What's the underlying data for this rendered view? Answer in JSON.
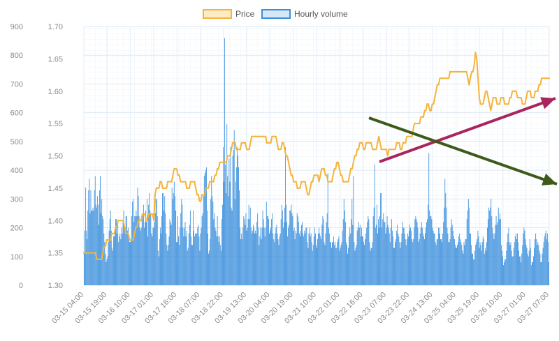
{
  "chart_data": {
    "type": "bar+line",
    "title": "",
    "legend": {
      "position": "top-center",
      "items": [
        {
          "label": "Price",
          "color": "#f4b43a"
        },
        {
          "label": "Hourly volume",
          "color": "#3b8fdc"
        }
      ]
    },
    "y_left": {
      "label": "",
      "ticks": [
        0,
        100,
        200,
        300,
        400,
        500,
        600,
        700,
        800,
        900
      ],
      "range": [
        0,
        900
      ]
    },
    "y_right": {
      "label": "",
      "ticks": [
        "1.30",
        "1.35",
        "1.40",
        "1.45",
        "1.50",
        "1.55",
        "1.60",
        "1.65",
        "1.70"
      ],
      "range": [
        1.3,
        1.7
      ]
    },
    "x_ticks": [
      "03-15 04:00",
      "03-15 19:00",
      "03-16 10:00",
      "03-17 01:00",
      "03-17 16:00",
      "03-18 07:00",
      "03-18 22:00",
      "03-19 13:00",
      "03-20 04:00",
      "03-20 19:00",
      "03-21 10:00",
      "03-22 01:00",
      "03-22 16:00",
      "03-23 07:00",
      "03-23 22:00",
      "03-24 13:00",
      "03-25 04:00",
      "03-25 19:00",
      "03-26 10:00",
      "03-27 01:00",
      "03-27 07:00"
    ],
    "grid": true,
    "series": [
      {
        "name": "Hourly volume",
        "kind": "bar",
        "axis": "left",
        "color": "#3b8fdc",
        "values": [
          190,
          110,
          340,
          190,
          160,
          260,
          330,
          370,
          250,
          330,
          260,
          260,
          270,
          260,
          330,
          380,
          280,
          270,
          310,
          280,
          210,
          330,
          380,
          250,
          300,
          240,
          230,
          180,
          150,
          110,
          80,
          90,
          100,
          150,
          190,
          230,
          260,
          190,
          130,
          120,
          170,
          170,
          190,
          230,
          230,
          180,
          210,
          150,
          170,
          180,
          160,
          200,
          180,
          220,
          260,
          200,
          180,
          240,
          240,
          190,
          200,
          160,
          150,
          150,
          160,
          240,
          290,
          300,
          220,
          240,
          240,
          260,
          240,
          340,
          310,
          240,
          200,
          190,
          200,
          230,
          240,
          280,
          200,
          220,
          260,
          220,
          300,
          170,
          280,
          320,
          260,
          250,
          180,
          170,
          200,
          200,
          220,
          250,
          300,
          300,
          240,
          120,
          100,
          160,
          200,
          180,
          240,
          320,
          320,
          260,
          310,
          250,
          180,
          140,
          120,
          140,
          170,
          230,
          220,
          210,
          340,
          300,
          320,
          360,
          310,
          260,
          150,
          150,
          240,
          170,
          140,
          200,
          250,
          300,
          280,
          200,
          170,
          200,
          220,
          170,
          190,
          120,
          130,
          180,
          210,
          260,
          170,
          140,
          140,
          260,
          190,
          170,
          180,
          180,
          180,
          200,
          210,
          170,
          120,
          180,
          200,
          240,
          250,
          310,
          380,
          390,
          400,
          410,
          260,
          180,
          110,
          120,
          160,
          300,
          380,
          310,
          290,
          230,
          250,
          200,
          190,
          170,
          240,
          170,
          150,
          170,
          140,
          120,
          230,
          280,
          480,
          360,
          860,
          420,
          320,
          560,
          380,
          310,
          440,
          360,
          480,
          270,
          260,
          450,
          470,
          540,
          300,
          360,
          410,
          480,
          450,
          410,
          330,
          200,
          160,
          180,
          160,
          200,
          240,
          230,
          210,
          250,
          190,
          200,
          230,
          280,
          230,
          270,
          200,
          180,
          190,
          210,
          200,
          180,
          190,
          180,
          220,
          250,
          200,
          140,
          170,
          200,
          160,
          200,
          260,
          230,
          200,
          170,
          200,
          290,
          240,
          240,
          230,
          180,
          190,
          200,
          230,
          250,
          180,
          160,
          150,
          180,
          200,
          210,
          180,
          160,
          140,
          170,
          180,
          230,
          280,
          260,
          200,
          220,
          270,
          480,
          280,
          220,
          170,
          200,
          210,
          260,
          260,
          280,
          250,
          240,
          190,
          200,
          160,
          190,
          180,
          250,
          240,
          220,
          180,
          170,
          190,
          210,
          220,
          180,
          170,
          190,
          180,
          200,
          200,
          150,
          130,
          180,
          200,
          170,
          180,
          150,
          120,
          140,
          170,
          200,
          180,
          140,
          130,
          160,
          180,
          200,
          180,
          170,
          160,
          210,
          240,
          230,
          150,
          140,
          180,
          220,
          250,
          390,
          200,
          180,
          150,
          150,
          130,
          150,
          150,
          170,
          140,
          150,
          130,
          130,
          150,
          160,
          170,
          120,
          130,
          140,
          150,
          190,
          230,
          300,
          260,
          220,
          150,
          140,
          110,
          130,
          170,
          200,
          180,
          230,
          300,
          210,
          380,
          150,
          120,
          130,
          140,
          190,
          200,
          220,
          200,
          210,
          170,
          200,
          170,
          170,
          150,
          140,
          160,
          180,
          200,
          220,
          240,
          230,
          150,
          120,
          130,
          130,
          150,
          240,
          270,
          420,
          200,
          210,
          280,
          180,
          230,
          200,
          240,
          320,
          320,
          200,
          230,
          250,
          220,
          220,
          180,
          200,
          240,
          210,
          200,
          180,
          150,
          200,
          230,
          190,
          170,
          130,
          130,
          150,
          160,
          190,
          210,
          180,
          170,
          150,
          130,
          150,
          180,
          220,
          200,
          200,
          180,
          160,
          140,
          160,
          180,
          170,
          190,
          210,
          200,
          190,
          160,
          150,
          160,
          200,
          230,
          240,
          230,
          220,
          200,
          150,
          160,
          180,
          200,
          220,
          200,
          180,
          170,
          160,
          180,
          200,
          220,
          230,
          280,
          460,
          260,
          240,
          240,
          230,
          200,
          190,
          180,
          180,
          150,
          140,
          160,
          160,
          200,
          180,
          200,
          160,
          160,
          150,
          180,
          220,
          270,
          370,
          320,
          270,
          200,
          180,
          150,
          150,
          160,
          200,
          230,
          210,
          190,
          170,
          160,
          140,
          130,
          130,
          140,
          150,
          170,
          180,
          160,
          150,
          140,
          120,
          110,
          150,
          140,
          160,
          160,
          230,
          260,
          300,
          270,
          180,
          180,
          140,
          110,
          110,
          90,
          90,
          120,
          140,
          150,
          160,
          190,
          170,
          130,
          150,
          140,
          120,
          150,
          170,
          160,
          110,
          130,
          120,
          150,
          200,
          230,
          270,
          260,
          270,
          300,
          240,
          200,
          180,
          160,
          180,
          210,
          240,
          210,
          220,
          270,
          230,
          250,
          230,
          140,
          120,
          100,
          70,
          80,
          90,
          90,
          120,
          150,
          180,
          200,
          150,
          140,
          150,
          120,
          100,
          100,
          130,
          150,
          170,
          180,
          160,
          180,
          150,
          120,
          100,
          100,
          80,
          110,
          140,
          180,
          200,
          190,
          160,
          140,
          130,
          110,
          100,
          120,
          160,
          130,
          70,
          80,
          80,
          100,
          130,
          160,
          180,
          160,
          140,
          150,
          140,
          120,
          110,
          80,
          80,
          110,
          130,
          150,
          170,
          180,
          190,
          160,
          180,
          150,
          80
        ]
      },
      {
        "name": "Price",
        "kind": "line",
        "axis": "right",
        "color": "#f4b43a",
        "values": [
          1.35,
          1.35,
          1.35,
          1.35,
          1.35,
          1.35,
          1.35,
          1.35,
          1.35,
          1.35,
          1.34,
          1.34,
          1.34,
          1.34,
          1.34,
          1.35,
          1.36,
          1.36,
          1.37,
          1.37,
          1.37,
          1.37,
          1.38,
          1.38,
          1.38,
          1.39,
          1.39,
          1.4,
          1.4,
          1.4,
          1.4,
          1.4,
          1.39,
          1.38,
          1.38,
          1.38,
          1.37,
          1.37,
          1.37,
          1.37,
          1.38,
          1.39,
          1.39,
          1.4,
          1.4,
          1.4,
          1.41,
          1.41,
          1.41,
          1.4,
          1.4,
          1.41,
          1.41,
          1.41,
          1.41,
          1.4,
          1.44,
          1.45,
          1.45,
          1.45,
          1.46,
          1.46,
          1.45,
          1.45,
          1.45,
          1.45,
          1.46,
          1.46,
          1.46,
          1.46,
          1.47,
          1.48,
          1.48,
          1.48,
          1.47,
          1.47,
          1.46,
          1.46,
          1.46,
          1.46,
          1.46,
          1.45,
          1.45,
          1.45,
          1.46,
          1.46,
          1.46,
          1.46,
          1.45,
          1.44,
          1.44,
          1.43,
          1.43,
          1.44,
          1.44,
          1.44,
          1.45,
          1.45,
          1.45,
          1.46,
          1.46,
          1.46,
          1.46,
          1.47,
          1.47,
          1.48,
          1.48,
          1.49,
          1.49,
          1.49,
          1.49,
          1.49,
          1.49,
          1.5,
          1.5,
          1.5,
          1.51,
          1.52,
          1.52,
          1.52,
          1.51,
          1.51,
          1.51,
          1.51,
          1.52,
          1.52,
          1.52,
          1.52,
          1.51,
          1.51,
          1.51,
          1.52,
          1.53,
          1.53,
          1.53,
          1.53,
          1.53,
          1.53,
          1.53,
          1.53,
          1.53,
          1.53,
          1.53,
          1.53,
          1.52,
          1.52,
          1.52,
          1.52,
          1.53,
          1.53,
          1.53,
          1.53,
          1.52,
          1.51,
          1.51,
          1.51,
          1.52,
          1.52,
          1.51,
          1.5,
          1.5,
          1.49,
          1.48,
          1.47,
          1.47,
          1.46,
          1.46,
          1.46,
          1.45,
          1.45,
          1.45,
          1.46,
          1.46,
          1.46,
          1.46,
          1.45,
          1.44,
          1.44,
          1.45,
          1.46,
          1.46,
          1.47,
          1.47,
          1.47,
          1.47,
          1.46,
          1.47,
          1.48,
          1.48,
          1.48,
          1.47,
          1.47,
          1.46,
          1.46,
          1.46,
          1.46,
          1.47,
          1.48,
          1.48,
          1.49,
          1.49,
          1.48,
          1.47,
          1.47,
          1.46,
          1.46,
          1.46,
          1.46,
          1.46,
          1.47,
          1.48,
          1.48,
          1.49,
          1.5,
          1.5,
          1.51,
          1.51,
          1.52,
          1.52,
          1.52,
          1.51,
          1.51,
          1.52,
          1.52,
          1.52,
          1.52,
          1.52,
          1.51,
          1.51,
          1.51,
          1.51,
          1.52,
          1.53,
          1.52,
          1.51,
          1.51,
          1.51,
          1.51,
          1.51,
          1.5,
          1.51,
          1.51,
          1.51,
          1.51,
          1.51,
          1.51,
          1.52,
          1.52,
          1.52,
          1.51,
          1.51,
          1.52,
          1.52,
          1.52,
          1.53,
          1.53,
          1.53,
          1.53,
          1.53,
          1.54,
          1.55,
          1.55,
          1.55,
          1.55,
          1.55,
          1.56,
          1.56,
          1.56,
          1.57,
          1.57,
          1.58,
          1.58,
          1.57,
          1.57,
          1.58,
          1.58,
          1.59,
          1.6,
          1.61,
          1.61,
          1.62,
          1.62,
          1.62,
          1.62,
          1.62,
          1.62,
          1.62,
          1.62,
          1.63,
          1.63,
          1.63,
          1.63,
          1.63,
          1.63,
          1.63,
          1.63,
          1.63,
          1.63,
          1.63,
          1.63,
          1.63,
          1.63,
          1.62,
          1.61,
          1.62,
          1.63,
          1.63,
          1.64,
          1.66,
          1.65,
          1.62,
          1.59,
          1.58,
          1.58,
          1.58,
          1.59,
          1.6,
          1.6,
          1.59,
          1.58,
          1.57,
          1.58,
          1.59,
          1.59,
          1.59,
          1.58,
          1.58,
          1.58,
          1.59,
          1.59,
          1.59,
          1.58,
          1.58,
          1.58,
          1.58,
          1.59,
          1.59,
          1.6,
          1.6,
          1.6,
          1.6,
          1.59,
          1.59,
          1.59,
          1.59,
          1.58,
          1.58,
          1.58,
          1.59,
          1.6,
          1.6,
          1.6,
          1.59,
          1.59,
          1.59,
          1.6,
          1.6,
          1.6,
          1.61,
          1.61,
          1.62,
          1.62,
          1.62,
          1.62,
          1.62,
          1.62,
          1.62
        ]
      }
    ],
    "annotations": [
      {
        "type": "arrow",
        "color": "#a8265d",
        "direction": "upward"
      },
      {
        "type": "arrow",
        "color": "#3e5a1a",
        "direction": "downward"
      }
    ]
  }
}
